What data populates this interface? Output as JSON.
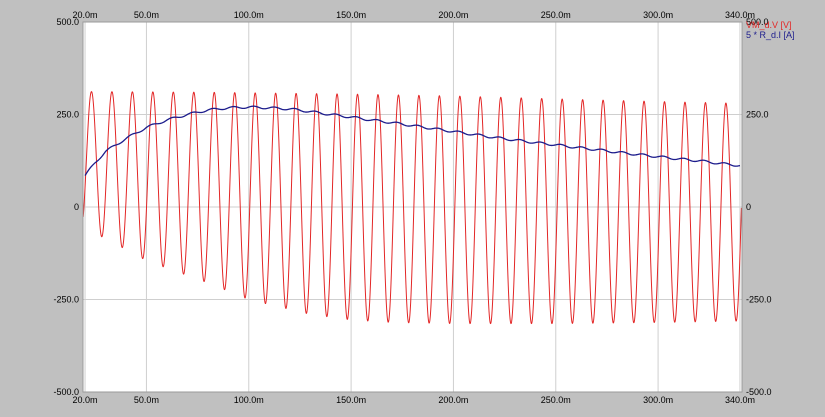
{
  "chart_data": {
    "type": "line",
    "x_unit": "m",
    "x_ticks": [
      "20.0m",
      "50.0m",
      "100.0m",
      "150.0m",
      "200.0m",
      "250.0m",
      "300.0m",
      "340.0m"
    ],
    "x_tick_values": [
      20,
      50,
      100,
      150,
      200,
      250,
      300,
      340
    ],
    "xlim": [
      19,
      341
    ],
    "y_ticks": [
      "500.0",
      "250.0",
      "0",
      "-250.0",
      "-500.0"
    ],
    "y_tick_values": [
      500,
      250,
      0,
      -250,
      -500
    ],
    "ylim": [
      -500,
      500
    ],
    "grid": true,
    "legend_position": "top-right",
    "series": [
      {
        "name": "VM_d.V [V]",
        "color": "#e32626",
        "kind": "sinusoid",
        "frequency_hz": 100,
        "peak_envelope": {
          "x": [
            20,
            80,
            150,
            200,
            250,
            300,
            340
          ],
          "y": [
            312,
            310,
            305,
            300,
            292,
            285,
            280
          ]
        },
        "trough_envelope": {
          "x": [
            20,
            30,
            50,
            80,
            100,
            130,
            150,
            170,
            200,
            250,
            300,
            340
          ],
          "y": [
            -60,
            -85,
            -145,
            -205,
            -250,
            -290,
            -305,
            -312,
            -315,
            -315,
            -312,
            -308
          ]
        }
      },
      {
        "name": "5 * R_d.I [A]",
        "color": "#1c1c8c",
        "x": [
          20,
          25,
          30,
          40,
          50,
          60,
          70,
          80,
          90,
          100,
          110,
          120,
          130,
          140,
          150,
          160,
          170,
          180,
          190,
          200,
          210,
          220,
          230,
          240,
          250,
          260,
          270,
          280,
          290,
          300,
          310,
          320,
          330,
          340
        ],
        "y": [
          85,
          120,
          150,
          185,
          215,
          235,
          250,
          262,
          268,
          270,
          268,
          265,
          258,
          250,
          243,
          235,
          228,
          220,
          212,
          204,
          196,
          188,
          181,
          174,
          168,
          161,
          155,
          148,
          142,
          136,
          130,
          125,
          118,
          112
        ]
      }
    ]
  }
}
